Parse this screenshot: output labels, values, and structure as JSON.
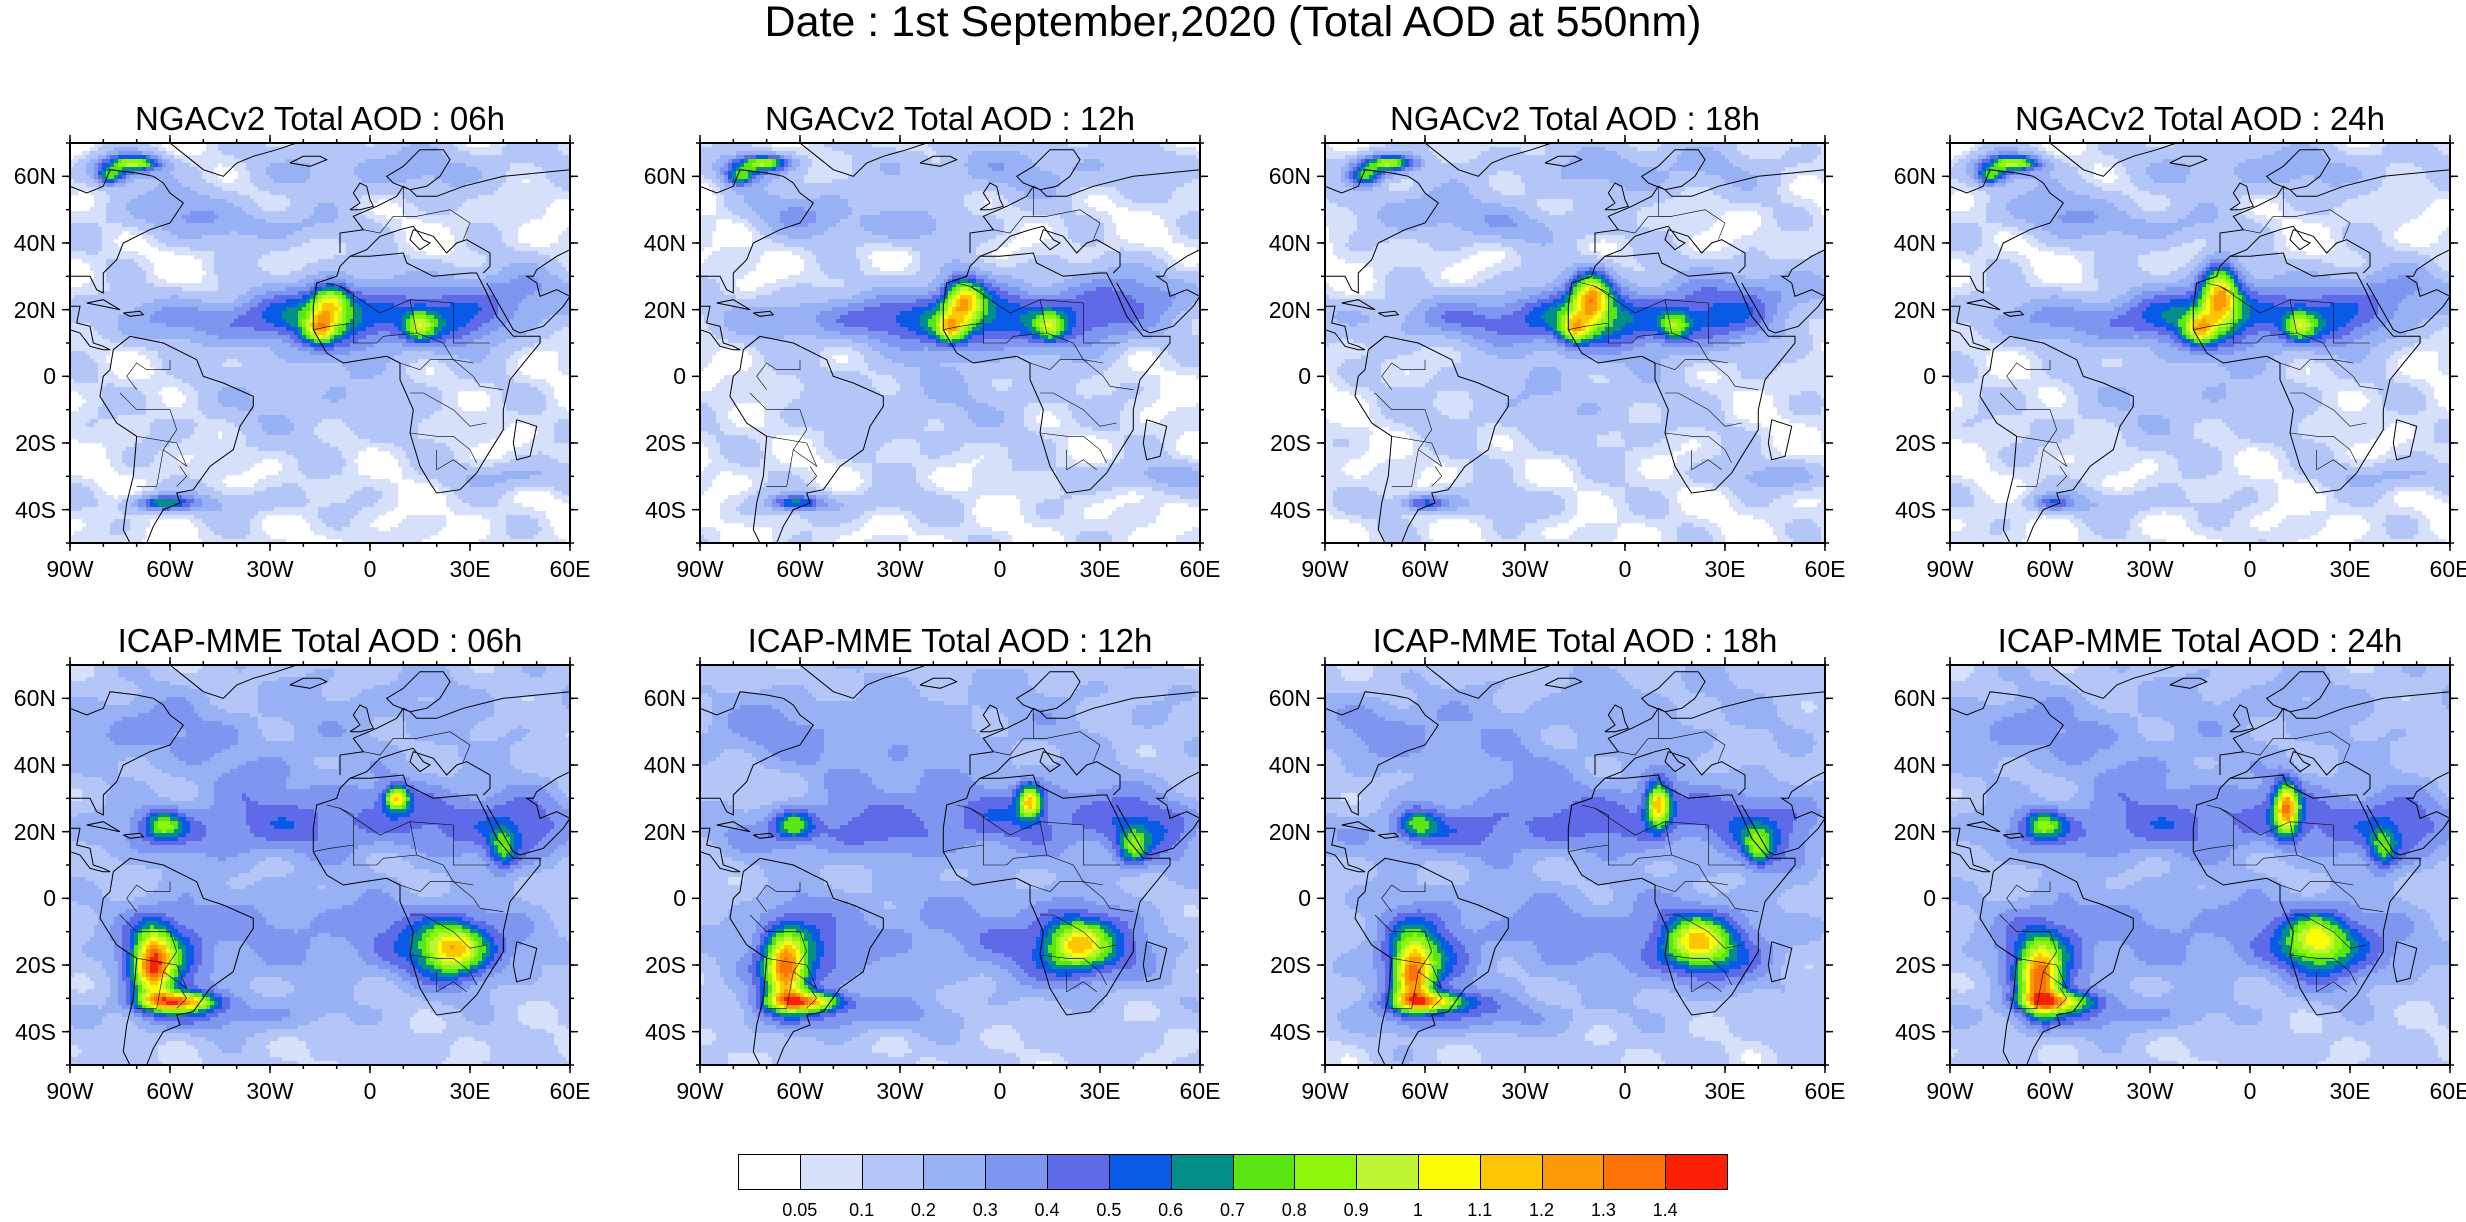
{
  "title": "Date : 1st September,2020 (Total AOD at 550nm)",
  "panels": [
    {
      "title": "NGACv2 Total AOD : 06h",
      "model": "ngac",
      "hour": 6
    },
    {
      "title": "NGACv2 Total AOD : 12h",
      "model": "ngac",
      "hour": 12
    },
    {
      "title": "NGACv2 Total AOD : 18h",
      "model": "ngac",
      "hour": 18
    },
    {
      "title": "NGACv2 Total AOD : 24h",
      "model": "ngac",
      "hour": 24
    },
    {
      "title": "ICAP-MME Total AOD : 06h",
      "model": "icap",
      "hour": 6
    },
    {
      "title": "ICAP-MME Total AOD : 12h",
      "model": "icap",
      "hour": 12
    },
    {
      "title": "ICAP-MME Total AOD : 18h",
      "model": "icap",
      "hour": 18
    },
    {
      "title": "ICAP-MME Total AOD : 24h",
      "model": "icap",
      "hour": 24
    }
  ],
  "lat_ticks": [
    "60N",
    "40N",
    "20N",
    "0",
    "20S",
    "40S"
  ],
  "lon_ticks": [
    "90W",
    "60W",
    "30W",
    "0",
    "30E",
    "60E"
  ],
  "map_extent": {
    "lon": [
      -90,
      60
    ],
    "lat": [
      -50,
      70
    ]
  },
  "colorbar": {
    "colors": [
      "#ffffff",
      "#d6e0fa",
      "#b4c6f7",
      "#98b0f4",
      "#7e96ef",
      "#5f6ae8",
      "#0a5ae8",
      "#048e8a",
      "#5ae613",
      "#8ef60c",
      "#c0f533",
      "#fcfc05",
      "#fcc605",
      "#fc9a06",
      "#fc7206",
      "#fc2006"
    ],
    "labels": [
      "0.05",
      "0.1",
      "0.2",
      "0.3",
      "0.4",
      "0.5",
      "0.6",
      "0.7",
      "0.8",
      "0.9",
      "1",
      "1.1",
      "1.2",
      "1.3",
      "1.4"
    ]
  }
}
